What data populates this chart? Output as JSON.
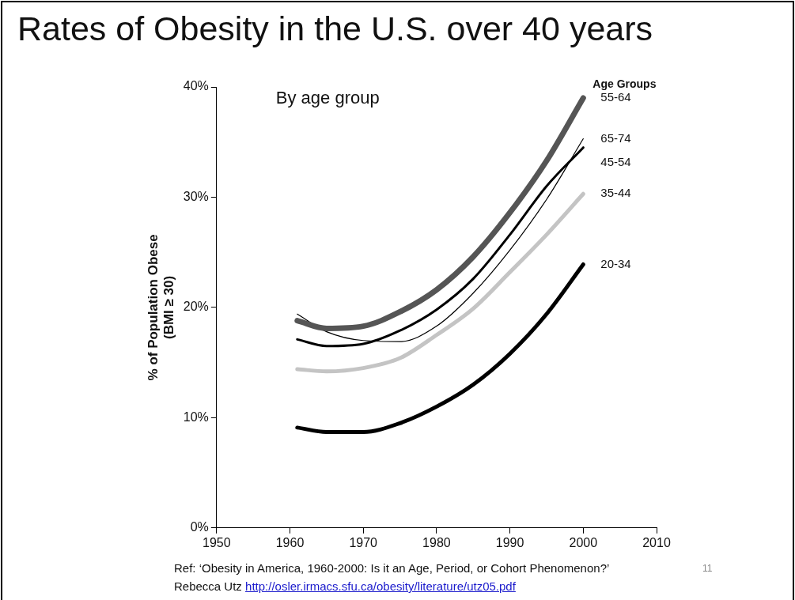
{
  "chart_data": {
    "type": "line",
    "title": "Rates of Obesity in the U.S. over 40 years",
    "subtitle": "By age group",
    "ylabel": "% of Population Obese\n(BMI ≥ 30)",
    "legend_title": "Age Groups",
    "x": [
      1961,
      1965,
      1970,
      1975,
      1980,
      1985,
      1990,
      1995,
      2000
    ],
    "series": [
      {
        "name": "55-64",
        "color": "#555555",
        "values": [
          18.8,
          18.1,
          18.3,
          19.6,
          21.6,
          24.6,
          28.6,
          33.3,
          39.0
        ]
      },
      {
        "name": "65-74",
        "color": "#000000",
        "values": [
          19.4,
          17.8,
          17.0,
          16.9,
          18.3,
          21.3,
          25.2,
          29.8,
          35.3
        ]
      },
      {
        "name": "45-54",
        "color": "#000000",
        "values": [
          17.1,
          16.5,
          16.7,
          17.9,
          19.8,
          22.6,
          26.6,
          31.0,
          34.5
        ]
      },
      {
        "name": "35-44",
        "color": "#c4c4c4",
        "values": [
          14.4,
          14.2,
          14.5,
          15.4,
          17.5,
          19.9,
          23.2,
          26.6,
          30.3
        ]
      },
      {
        "name": "20-34",
        "color": "#000000",
        "values": [
          9.1,
          8.7,
          8.7,
          9.5,
          11.0,
          13.0,
          15.8,
          19.4,
          23.9
        ]
      }
    ],
    "xlim": [
      1950,
      2010
    ],
    "xticks": [
      1950,
      1960,
      1970,
      1980,
      1990,
      2000,
      2010
    ],
    "ylim": [
      0,
      40
    ],
    "yticks": [
      {
        "value": 0,
        "label": "0%"
      },
      {
        "value": 10,
        "label": "10%"
      },
      {
        "value": 20,
        "label": "20%"
      },
      {
        "value": 30,
        "label": "30%"
      },
      {
        "value": 40,
        "label": "40%"
      }
    ],
    "grid": false,
    "legend": false,
    "marker": "none",
    "line_style": "solid",
    "annotations": [
      "Ref: ‘Obesity in America, 1960-2000: Is it an Age, Period, or Cohort Phenomenon?’",
      "Rebecca Utz http://osler.irmacs.sfu.ca/obesity/literature/utz05.pdf",
      "11"
    ]
  }
}
